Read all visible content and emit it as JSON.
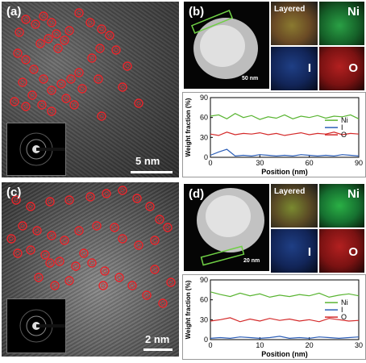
{
  "panels": {
    "a": {
      "label": "(a)",
      "scale": "5 nm"
    },
    "b": {
      "label": "(b)",
      "scale": "50 nm"
    },
    "c": {
      "label": "(c)",
      "scale": "2 nm"
    },
    "d": {
      "label": "(d)",
      "scale": "20 nm"
    }
  },
  "maps": {
    "layered": "Layered",
    "ni": "Ni",
    "i": "I",
    "o": "O"
  },
  "colors": {
    "marker": "#e8242a",
    "ni": "#5ab533",
    "i": "#2d5fb8",
    "o": "#d42a2a"
  },
  "chart_data": [
    {
      "type": "line",
      "title": "",
      "xlabel": "Position (nm)",
      "ylabel": "Weight fraction (%)",
      "xlim": [
        0,
        90
      ],
      "ylim": [
        0,
        90
      ],
      "xticks": [
        "0",
        "30",
        "60",
        "90"
      ],
      "yticks": [
        "0",
        "30",
        "60",
        "90"
      ],
      "legend_position": "top-right",
      "series": [
        {
          "name": "Ni",
          "x": [
            0,
            5,
            10,
            15,
            20,
            25,
            30,
            35,
            40,
            45,
            50,
            55,
            60,
            65,
            70,
            75,
            80,
            85,
            90
          ],
          "values": [
            62,
            64,
            58,
            66,
            60,
            63,
            57,
            61,
            59,
            64,
            58,
            62,
            60,
            63,
            59,
            62,
            61,
            64,
            58
          ]
        },
        {
          "name": "I",
          "x": [
            0,
            5,
            10,
            15,
            20,
            25,
            30,
            35,
            40,
            45,
            50,
            55,
            60,
            65,
            70,
            75,
            80,
            85,
            90
          ],
          "values": [
            3,
            8,
            12,
            2,
            3,
            2,
            4,
            3,
            2,
            3,
            2,
            4,
            3,
            2,
            3,
            2,
            4,
            3,
            2
          ]
        },
        {
          "name": "O",
          "x": [
            0,
            5,
            10,
            15,
            20,
            25,
            30,
            35,
            40,
            45,
            50,
            55,
            60,
            65,
            70,
            75,
            80,
            85,
            90
          ],
          "values": [
            35,
            33,
            38,
            34,
            36,
            35,
            37,
            34,
            36,
            33,
            35,
            37,
            34,
            36,
            35,
            38,
            34,
            36,
            35
          ]
        }
      ]
    },
    {
      "type": "line",
      "title": "",
      "xlabel": "Position (nm)",
      "ylabel": "Weight fraction (%)",
      "xlim": [
        0,
        30
      ],
      "ylim": [
        0,
        90
      ],
      "xticks": [
        "0",
        "10",
        "20",
        "30"
      ],
      "yticks": [
        "0",
        "30",
        "60",
        "90"
      ],
      "legend_position": "top-right",
      "series": [
        {
          "name": "Ni",
          "x": [
            0,
            2,
            4,
            6,
            8,
            10,
            12,
            14,
            16,
            18,
            20,
            22,
            24,
            26,
            28,
            30
          ],
          "values": [
            72,
            68,
            65,
            70,
            66,
            69,
            64,
            67,
            65,
            68,
            66,
            70,
            64,
            67,
            69,
            66
          ]
        },
        {
          "name": "I",
          "x": [
            0,
            2,
            4,
            6,
            8,
            10,
            12,
            14,
            16,
            18,
            20,
            22,
            24,
            26,
            28,
            30
          ],
          "values": [
            2,
            3,
            2,
            4,
            3,
            2,
            3,
            5,
            2,
            3,
            2,
            4,
            3,
            2,
            3,
            4
          ]
        },
        {
          "name": "O",
          "x": [
            0,
            2,
            4,
            6,
            8,
            10,
            12,
            14,
            16,
            18,
            20,
            22,
            24,
            26,
            28,
            30
          ],
          "values": [
            28,
            30,
            33,
            27,
            31,
            28,
            32,
            29,
            31,
            28,
            30,
            27,
            32,
            30,
            28,
            29
          ]
        }
      ]
    }
  ]
}
